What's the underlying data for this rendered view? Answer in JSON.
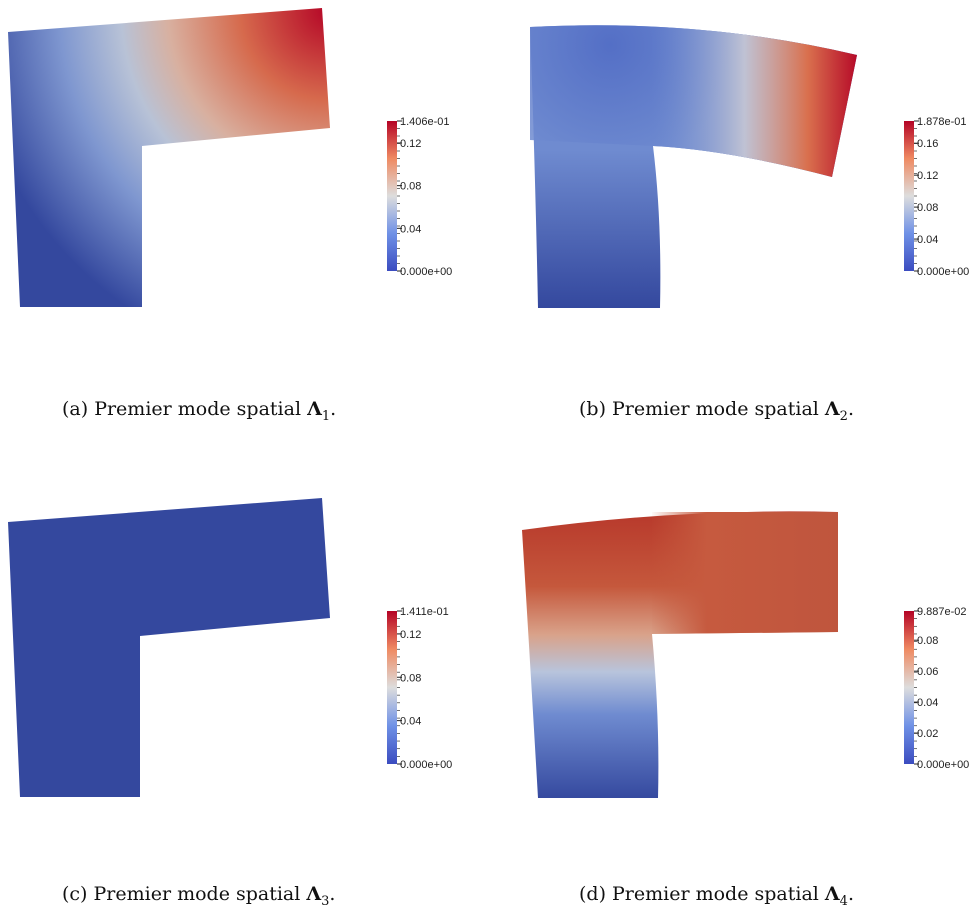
{
  "colormap": {
    "low": "#3b4cc0",
    "mid": "#dddddd",
    "high": "#b40426"
  },
  "panels": [
    {
      "id": "a",
      "caption_prefix": "(a)  Premier mode spatial",
      "symbol": "Λ",
      "subscript": "1",
      "caption_suffix": ".",
      "colorbar": {
        "max_label": "1.406e-01",
        "min_label": "0.000e+00",
        "ticks": [
          "0.12",
          "0.08",
          "0.04"
        ],
        "tick_values": [
          0.12,
          0.08,
          0.04
        ],
        "max_value": 0.1406
      }
    },
    {
      "id": "b",
      "caption_prefix": "(b)  Premier mode spatial",
      "symbol": "Λ",
      "subscript": "2",
      "caption_suffix": ".",
      "colorbar": {
        "max_label": "1.878e-01",
        "min_label": "0.000e+00",
        "ticks": [
          "0.16",
          "0.12",
          "0.08",
          "0.04"
        ],
        "tick_values": [
          0.16,
          0.12,
          0.08,
          0.04
        ],
        "max_value": 0.1878
      }
    },
    {
      "id": "c",
      "caption_prefix": "(c)  Premier mode spatial",
      "symbol": "Λ",
      "subscript": "3",
      "caption_suffix": ".",
      "colorbar": {
        "max_label": "1.411e-01",
        "min_label": "0.000e+00",
        "ticks": [
          "0.12",
          "0.08",
          "0.04"
        ],
        "tick_values": [
          0.12,
          0.08,
          0.04
        ],
        "max_value": 0.1411
      }
    },
    {
      "id": "d",
      "caption_prefix": "(d)  Premier mode spatial",
      "symbol": "Λ",
      "subscript": "4",
      "caption_suffix": ".",
      "colorbar": {
        "max_label": "9.887e-02",
        "min_label": "0.000e+00",
        "ticks": [
          "0.08",
          "0.06",
          "0.04",
          "0.02"
        ],
        "tick_values": [
          0.08,
          0.06,
          0.04,
          0.02
        ],
        "max_value": 0.09887
      }
    }
  ]
}
